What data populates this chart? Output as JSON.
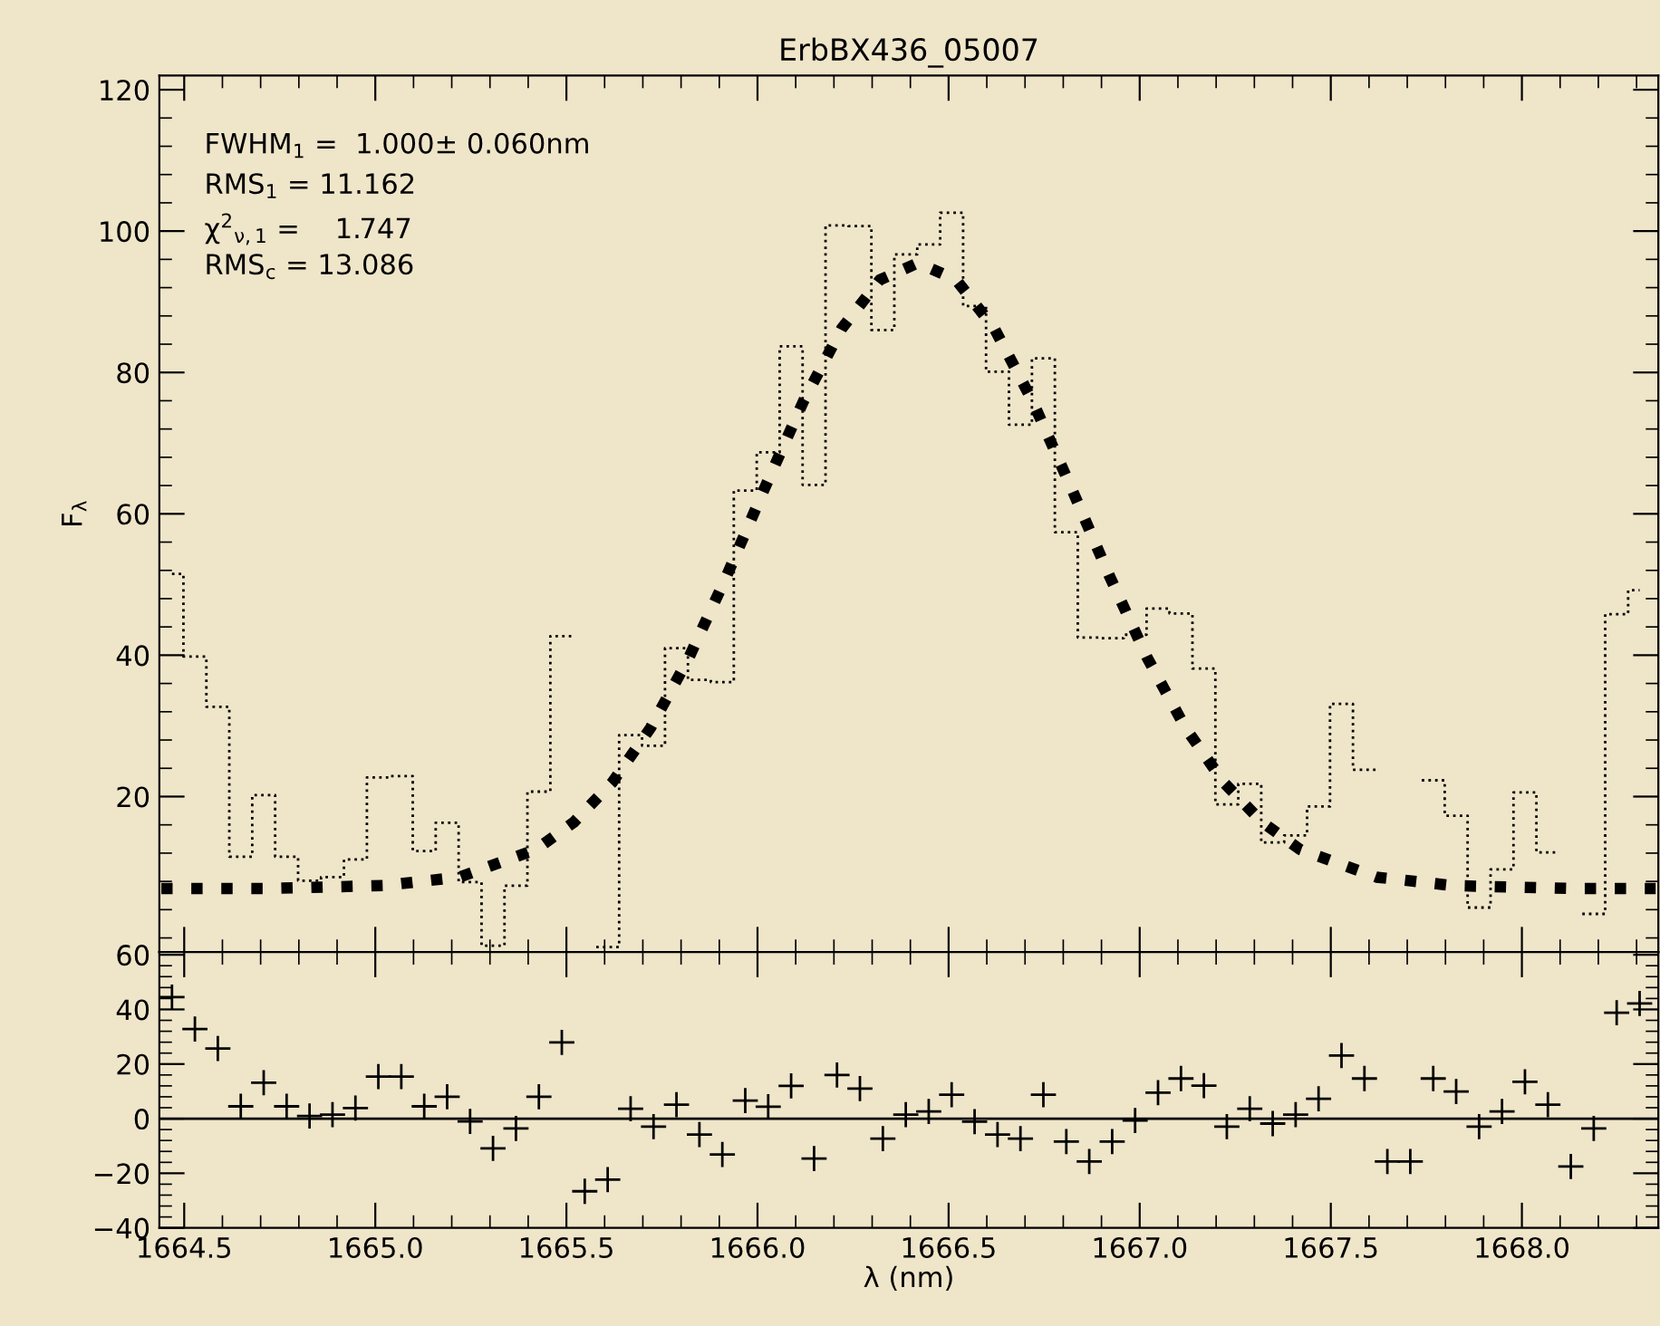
{
  "chart_data": [
    {
      "type": "step",
      "title": "ErbBX436_05007",
      "ylabel": "F$_{λ}$",
      "tick_labels": "y",
      "xlim": [
        1664.435,
        1668.357
      ],
      "ylim": [
        -2,
        122
      ],
      "xticks": [
        1664.5,
        1665.0,
        1665.5,
        1666.0,
        1666.5,
        1667.0,
        1667.5,
        1668.0
      ],
      "yticks": [
        20,
        40,
        60,
        80,
        100,
        120
      ],
      "annotations": [
        "FWHM$_{1}$ =  1.000± 0.060nm",
        "RMS$_{1}$ = 11.162",
        "χ$^{2}$$_{ν,1}$ =    1.747",
        "RMS$_{c}$ = 13.086"
      ],
      "x": [
        1664.468,
        1664.528,
        1664.588,
        1664.648,
        1664.708,
        1664.768,
        1664.828,
        1664.888,
        1664.948,
        1665.008,
        1665.068,
        1665.128,
        1665.188,
        1665.248,
        1665.308,
        1665.368,
        1665.428,
        1665.488,
        1665.548,
        1665.608,
        1665.668,
        1665.728,
        1665.788,
        1665.848,
        1665.908,
        1665.968,
        1666.028,
        1666.088,
        1666.148,
        1666.208,
        1666.268,
        1666.328,
        1666.388,
        1666.448,
        1666.508,
        1666.568,
        1666.628,
        1666.688,
        1666.748,
        1666.808,
        1666.868,
        1666.928,
        1666.988,
        1667.048,
        1667.108,
        1667.168,
        1667.228,
        1667.288,
        1667.348,
        1667.408,
        1667.468,
        1667.528,
        1667.588,
        1667.648,
        1667.708,
        1667.768,
        1667.828,
        1667.888,
        1667.948,
        1668.008,
        1668.068,
        1668.128,
        1668.188,
        1668.248,
        1668.308
      ],
      "series": [
        {
          "type": "step",
          "color": "#000000",
          "line_style": "dotted",
          "values": [
            51.5,
            39.8,
            32.7,
            11.5,
            20.2,
            11.5,
            8.1,
            8.6,
            11.1,
            22.7,
            22.9,
            12.3,
            16.3,
            7.9,
            -1.1,
            7.4,
            20.7,
            42.7,
            null,
            -1.3,
            28.7,
            27.2,
            41.0,
            36.5,
            36.2,
            63.3,
            68.7,
            83.7,
            64.1,
            100.8,
            100.7,
            86.0,
            96.7,
            98.1,
            102.6,
            89.4,
            80.1,
            72.6,
            82.0,
            57.4,
            42.5,
            42.4,
            42.9,
            46.6,
            45.9,
            38.1,
            18.9,
            21.8,
            13.5,
            14.5,
            18.6,
            33.1,
            23.8,
            null,
            null,
            22.3,
            17.3,
            4.3,
            9.7,
            20.6,
            12.1,
            null,
            3.4,
            45.8,
            49.2
          ]
        },
        {
          "type": "line",
          "color": "#000000",
          "line_style": "dotted",
          "x": [
            1664.44,
            1664.72,
            1665.02,
            1665.22,
            1665.42,
            1665.52,
            1665.62,
            1665.72,
            1665.82,
            1665.92,
            1666.02,
            1666.12,
            1666.22,
            1666.32,
            1666.42,
            1666.52,
            1666.62,
            1666.72,
            1666.82,
            1666.92,
            1667.02,
            1667.12,
            1667.22,
            1667.32,
            1667.42,
            1667.62,
            1667.82,
            1668.12,
            1668.35
          ],
          "values": [
            7.0,
            7.0,
            7.4,
            8.6,
            12.5,
            16.4,
            22.0,
            29.7,
            39.6,
            51.3,
            63.8,
            75.9,
            86.2,
            93.1,
            95.5,
            93.1,
            86.2,
            75.9,
            63.8,
            51.3,
            39.6,
            29.7,
            22.0,
            16.4,
            12.5,
            8.6,
            7.4,
            7.0,
            7.0
          ]
        }
      ]
    },
    {
      "type": "scatter",
      "xlabel": "λ (nm)",
      "marker": "cross",
      "xlim": [
        1664.435,
        1668.357
      ],
      "ylim": [
        -40,
        61
      ],
      "xticks": [
        {
          "value": 1664.5,
          "label": "1664.5"
        },
        {
          "value": 1665.0,
          "label": "1665.0"
        },
        {
          "value": 1665.5,
          "label": "1665.5"
        },
        {
          "value": 1666.0,
          "label": "1666.0"
        },
        {
          "value": 1666.5,
          "label": "1666.5"
        },
        {
          "value": 1667.0,
          "label": "1667.0"
        },
        {
          "value": 1667.5,
          "label": "1667.5"
        },
        {
          "value": 1668.0,
          "label": "1668.0"
        }
      ],
      "yticks": [
        {
          "value": -40,
          "label": "−40"
        },
        {
          "value": -20,
          "label": "−20"
        },
        0,
        20,
        40,
        60
      ],
      "ref_lines": [
        {
          "axis": "y",
          "value": 0,
          "color": "#000000"
        }
      ],
      "x": [
        1664.468,
        1664.528,
        1664.588,
        1664.648,
        1664.708,
        1664.768,
        1664.828,
        1664.888,
        1664.948,
        1665.008,
        1665.068,
        1665.128,
        1665.188,
        1665.248,
        1665.308,
        1665.368,
        1665.428,
        1665.488,
        1665.548,
        1665.608,
        1665.668,
        1665.728,
        1665.788,
        1665.848,
        1665.908,
        1665.968,
        1666.028,
        1666.088,
        1666.148,
        1666.208,
        1666.268,
        1666.328,
        1666.388,
        1666.448,
        1666.508,
        1666.568,
        1666.628,
        1666.688,
        1666.748,
        1666.808,
        1666.868,
        1666.928,
        1666.988,
        1667.048,
        1667.108,
        1667.168,
        1667.228,
        1667.288,
        1667.348,
        1667.408,
        1667.468,
        1667.528,
        1667.588,
        1667.648,
        1667.708,
        1667.768,
        1667.828,
        1667.888,
        1667.948,
        1668.008,
        1668.068,
        1668.128,
        1668.188,
        1668.248,
        1668.308
      ],
      "series": [
        {
          "color": "#000000",
          "values": [
            44.5,
            32.8,
            25.7,
            4.5,
            13.2,
            4.5,
            1.0,
            1.5,
            3.9,
            15.4,
            15.4,
            4.5,
            8.0,
            -1.0,
            -10.9,
            -3.6,
            8.0,
            27.9,
            -26.6,
            -22.3,
            3.6,
            -2.9,
            5.1,
            -5.8,
            -13.1,
            6.6,
            4.4,
            12.0,
            -14.6,
            16.0,
            11.0,
            -7.3,
            1.5,
            2.6,
            8.8,
            -1.1,
            -5.8,
            -7.3,
            8.8,
            -8.4,
            -15.7,
            -8.4,
            -0.7,
            9.5,
            14.7,
            12.1,
            -2.9,
            3.6,
            -1.8,
            1.5,
            7.3,
            23.1,
            14.7,
            -15.7,
            -15.7,
            14.7,
            9.9,
            -2.9,
            2.6,
            13.5,
            5.1,
            -17.5,
            -3.6,
            38.8,
            42.2
          ]
        }
      ]
    }
  ]
}
